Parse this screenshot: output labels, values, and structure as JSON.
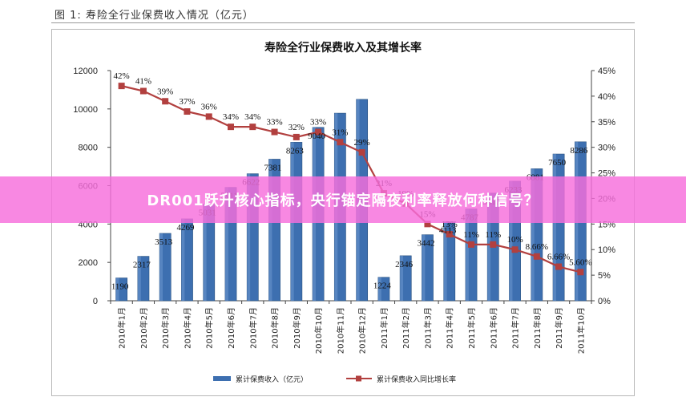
{
  "figure_caption": "图 1: 寿险全行业保费收入情况（亿元）",
  "banner": {
    "text": "DR001跃升核心指标，央行锚定隔夜利率释放何种信号？"
  },
  "colors": {
    "bar": "#3d6fb0",
    "bar_dark": "#27507f",
    "line": "#b2403f",
    "banner": "#f66edc"
  },
  "chart_data": {
    "type": "bar",
    "title": "寿险全行业保费收入及其增长率",
    "categories": [
      "2010年1月",
      "2010年2月",
      "2010年3月",
      "2010年4月",
      "2010年5月",
      "2010年6月",
      "2010年7月",
      "2010年8月",
      "2010年9月",
      "2010年10月",
      "2010年11月",
      "2010年12月",
      "2011年1月",
      "2011年2月",
      "2011年3月",
      "2011年4月",
      "2011年5月",
      "2011年6月",
      "2011年7月",
      "2011年8月",
      "2011年9月",
      "2011年10月"
    ],
    "series": [
      {
        "name": "累计保费收入（亿元）",
        "type": "bar",
        "axis": "left",
        "values": [
          1190,
          2317,
          3513,
          4269,
          5031,
          5911,
          6622,
          7381,
          8263,
          9040,
          9780,
          10500,
          1224,
          2346,
          3442,
          4113,
          4787,
          5612,
          6233,
          6881,
          7650,
          8286
        ],
        "labels": [
          "1190",
          "2317",
          "3513",
          "4269",
          "5031",
          "5911",
          "6622",
          "7381",
          "8263",
          "9040",
          "",
          "",
          "1224",
          "2346",
          "3442",
          "4113",
          "4787",
          "5612",
          "6233",
          "6881",
          "7650",
          "8286"
        ]
      },
      {
        "name": "累计保费收入同比增长率",
        "type": "line",
        "axis": "right",
        "values": [
          42,
          41,
          39,
          37,
          36,
          34,
          34,
          33,
          32,
          33,
          31,
          29,
          21,
          19,
          15,
          13,
          11,
          11,
          10,
          8.66,
          6.66,
          5.6
        ],
        "labels": [
          "42%",
          "41%",
          "39%",
          "37%",
          "36%",
          "34%",
          "34%",
          "33%",
          "32%",
          "33%",
          "31%",
          "29%",
          "21%",
          "19%",
          "15%",
          "13%",
          "11%",
          "11%",
          "10%",
          "8.66%",
          "6.66%",
          "5.60%"
        ]
      }
    ],
    "y_left": {
      "min": 0,
      "max": 12000,
      "ticks": [
        "0",
        "2000",
        "4000",
        "6000",
        "8000",
        "10000",
        "12000"
      ]
    },
    "y_right": {
      "min": 0,
      "max": 45,
      "ticks": [
        "0%",
        "5%",
        "10%",
        "15%",
        "20%",
        "25%",
        "30%",
        "35%",
        "40%",
        "45%"
      ]
    },
    "legend_position": "bottom",
    "grid": false
  }
}
